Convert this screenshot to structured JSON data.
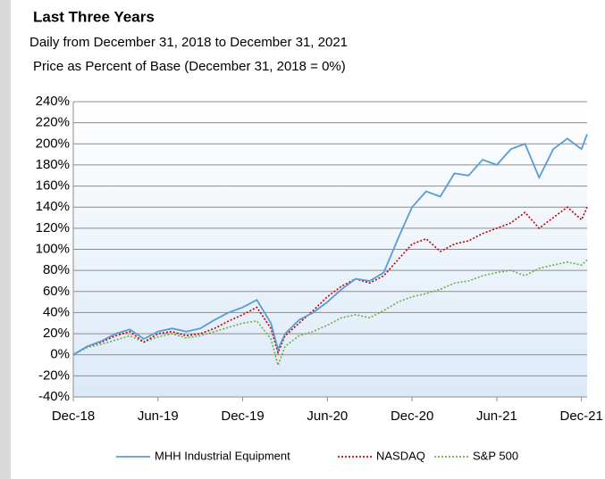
{
  "chart_data": {
    "type": "line",
    "title": "Last Three Years",
    "subtitle": "Daily from December 31, 2018 to December 31, 2021",
    "y_label": "Price as Percent of Base (December 31, 2018 = 0%)",
    "x": [
      0,
      1,
      2,
      3,
      4,
      5,
      6,
      7,
      8,
      9,
      10,
      11,
      12,
      13,
      14,
      14.5,
      15,
      16,
      17,
      18,
      19,
      20,
      21,
      22,
      23,
      24,
      25,
      26,
      27,
      28,
      29,
      30,
      31,
      32,
      33,
      34,
      35,
      36,
      36.4
    ],
    "series": [
      {
        "name": "MHH Industrial Equipment",
        "color": "#5b9bd5",
        "style": "solid",
        "values": [
          0,
          8,
          13,
          20,
          24,
          15,
          22,
          25,
          22,
          25,
          33,
          40,
          45,
          52,
          30,
          5,
          20,
          33,
          40,
          50,
          62,
          72,
          70,
          78,
          110,
          140,
          155,
          150,
          172,
          170,
          185,
          180,
          195,
          200,
          168,
          195,
          205,
          195,
          209
        ]
      },
      {
        "name": "NASDAQ",
        "color": "#c00000",
        "style": "dotted",
        "values": [
          0,
          8,
          12,
          18,
          22,
          12,
          20,
          22,
          18,
          20,
          25,
          32,
          38,
          45,
          25,
          2,
          18,
          30,
          42,
          55,
          65,
          72,
          68,
          75,
          90,
          105,
          110,
          98,
          105,
          108,
          115,
          120,
          125,
          135,
          120,
          130,
          140,
          128,
          140
        ]
      },
      {
        "name": "S&P 500",
        "color": "#70ad47",
        "style": "dotted",
        "values": [
          0,
          7,
          10,
          14,
          18,
          12,
          17,
          20,
          16,
          18,
          22,
          26,
          30,
          32,
          15,
          -10,
          8,
          18,
          22,
          28,
          35,
          38,
          35,
          42,
          50,
          55,
          58,
          62,
          68,
          70,
          75,
          78,
          80,
          75,
          82,
          85,
          88,
          85,
          90
        ]
      }
    ],
    "xlim": [
      0,
      36.4
    ],
    "xticks": [
      {
        "value": 0,
        "label": "Dec-18"
      },
      {
        "value": 6,
        "label": "Jun-19"
      },
      {
        "value": 12,
        "label": "Dec-19"
      },
      {
        "value": 18,
        "label": "Jun-20"
      },
      {
        "value": 24,
        "label": "Dec-20"
      },
      {
        "value": 30,
        "label": "Jun-21"
      },
      {
        "value": 36,
        "label": "Dec-21"
      }
    ],
    "ylim": [
      -40,
      240
    ],
    "yticks": [
      {
        "value": -40,
        "label": "-40%"
      },
      {
        "value": -20,
        "label": "-20%"
      },
      {
        "value": 0,
        "label": "0%"
      },
      {
        "value": 20,
        "label": "20%"
      },
      {
        "value": 40,
        "label": "40%"
      },
      {
        "value": 60,
        "label": "60%"
      },
      {
        "value": 80,
        "label": "80%"
      },
      {
        "value": 100,
        "label": "100%"
      },
      {
        "value": 120,
        "label": "120%"
      },
      {
        "value": 140,
        "label": "140%"
      },
      {
        "value": 160,
        "label": "160%"
      },
      {
        "value": 180,
        "label": "180%"
      },
      {
        "value": 200,
        "label": "200%"
      },
      {
        "value": 220,
        "label": "220%"
      },
      {
        "value": 240,
        "label": "240%"
      }
    ],
    "grid": true
  }
}
